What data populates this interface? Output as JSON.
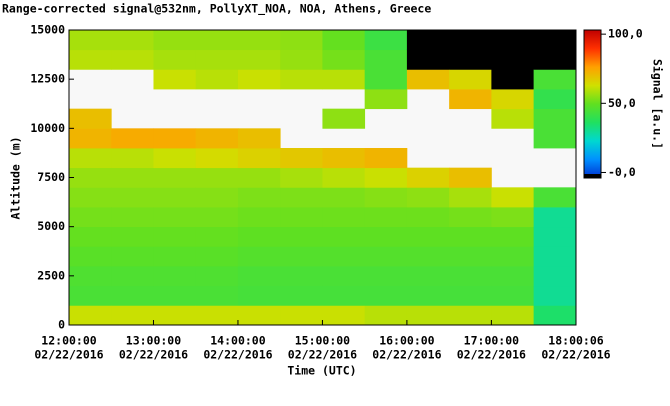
{
  "chart_data": {
    "type": "heatmap",
    "title": "Range-corrected signal@532nm, PollyXT_NOA, NOA, Athens, Greece",
    "x_label": "Time (UTC)",
    "y_label": "Altitude (m)",
    "colorbar_label": "Signal [a.u.]",
    "xlim": [
      12,
      18.001667
    ],
    "ylim": [
      0,
      15000
    ],
    "clim": [
      -4,
      103
    ],
    "xticks": [
      {
        "value": 12,
        "label": "12:00:00"
      },
      {
        "value": 13,
        "label": "13:00:00"
      },
      {
        "value": 14,
        "label": "14:00:00"
      },
      {
        "value": 15,
        "label": "15:00:00"
      },
      {
        "value": 16,
        "label": "16:00:00"
      },
      {
        "value": 17,
        "label": "17:00:00"
      },
      {
        "value": 18.001667,
        "label": "18:00:06"
      }
    ],
    "xtick_dates": [
      "02/22/2016",
      "02/22/2016",
      "02/22/2016",
      "02/22/2016",
      "02/22/2016",
      "02/22/2016",
      "02/22/2016"
    ],
    "yticks": [
      0,
      2500,
      5000,
      7500,
      10000,
      12500,
      15000
    ],
    "cticks": [
      {
        "value": 0,
        "label": "-0,0"
      },
      {
        "value": 50,
        "label": "50,0"
      },
      {
        "value": 100,
        "label": "100,0"
      }
    ],
    "colormap": [
      "#0030d0",
      "#0090ff",
      "#00d8d0",
      "#20e060",
      "#60e020",
      "#d0e000",
      "#ffa000",
      "#ff3000",
      "#c00000"
    ],
    "under_color": "#000000",
    "xbins": [
      12,
      12.5,
      13,
      13.5,
      14,
      14.5,
      15,
      15.5,
      16,
      16.5,
      17,
      17.5,
      18.001667
    ],
    "ybins": [
      0,
      1000,
      2000,
      3000,
      4000,
      5000,
      6000,
      7000,
      8000,
      9000,
      10000,
      11000,
      12000,
      13000,
      14000,
      15000
    ],
    "z": [
      [
        62,
        45,
        46,
        48,
        50,
        52,
        54,
        56,
        60,
        72,
        70,
        null,
        null,
        60,
        58
      ],
      [
        62,
        45,
        46,
        48,
        50,
        52,
        54,
        56,
        60,
        74,
        null,
        null,
        null,
        60,
        58
      ],
      [
        62,
        45,
        46,
        48,
        50,
        52,
        54,
        56,
        62,
        74,
        null,
        null,
        62,
        58,
        56
      ],
      [
        62,
        45,
        46,
        48,
        50,
        52,
        54,
        56,
        64,
        72,
        null,
        null,
        60,
        58,
        56
      ],
      [
        62,
        44,
        45,
        47,
        49,
        51,
        53,
        56,
        66,
        70,
        null,
        null,
        62,
        58,
        56
      ],
      [
        62,
        44,
        45,
        47,
        49,
        51,
        53,
        58,
        68,
        null,
        null,
        null,
        60,
        56,
        55
      ],
      [
        62,
        44,
        45,
        47,
        49,
        51,
        53,
        60,
        70,
        null,
        55,
        null,
        60,
        52,
        50
      ],
      [
        60,
        44,
        45,
        47,
        49,
        51,
        54,
        62,
        72,
        null,
        null,
        55,
        45,
        45,
        42
      ],
      [
        60,
        44,
        45,
        47,
        49,
        51,
        55,
        66,
        null,
        null,
        null,
        null,
        70,
        -10,
        -10
      ],
      [
        60,
        44,
        45,
        47,
        49,
        52,
        58,
        70,
        null,
        null,
        null,
        72,
        65,
        -10,
        -10
      ],
      [
        60,
        44,
        45,
        47,
        49,
        53,
        62,
        null,
        null,
        null,
        60,
        65,
        -10,
        -10,
        -10
      ],
      [
        35,
        30,
        30,
        30,
        30,
        30,
        45,
        null,
        null,
        45,
        45,
        40,
        45,
        -10,
        -10
      ]
    ]
  }
}
